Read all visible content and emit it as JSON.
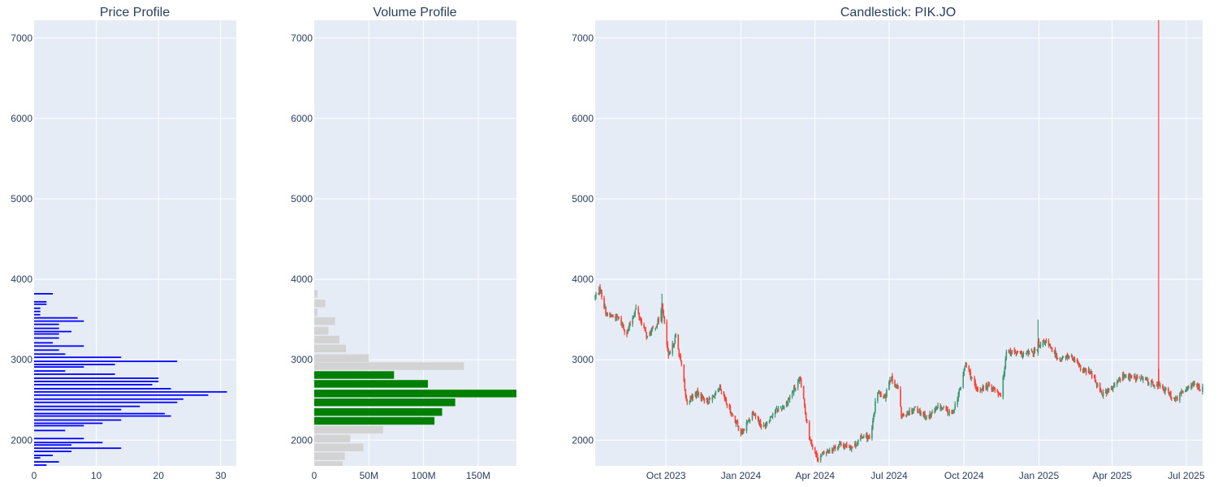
{
  "colors": {
    "plot_bg": "#E5ECF6",
    "grid": "#ffffff",
    "price_bar": "#0000ff",
    "volume_in_range": "#008000",
    "volume_out_range": "#d3d3d3",
    "candle_up": "#3d9970",
    "candle_down": "#ff4136",
    "text": "#2a3f5f"
  },
  "chart_data": [
    {
      "id": "price",
      "type": "bar",
      "orientation": "horizontal",
      "title": "Price Profile",
      "ylim": [
        1680,
        7220
      ],
      "xlim": [
        0,
        32.5
      ],
      "yticks": [
        2000,
        3000,
        4000,
        5000,
        6000,
        7000
      ],
      "xticks": [
        0,
        10,
        20,
        30
      ],
      "bar_height": 18,
      "grid": true,
      "bars": [
        {
          "y": 1690,
          "v": 2
        },
        {
          "y": 1730,
          "v": 4
        },
        {
          "y": 1780,
          "v": 1
        },
        {
          "y": 1810,
          "v": 3
        },
        {
          "y": 1860,
          "v": 6
        },
        {
          "y": 1900,
          "v": 14
        },
        {
          "y": 1940,
          "v": 6
        },
        {
          "y": 1970,
          "v": 11
        },
        {
          "y": 2020,
          "v": 8
        },
        {
          "y": 2120,
          "v": 5
        },
        {
          "y": 2180,
          "v": 8
        },
        {
          "y": 2210,
          "v": 11
        },
        {
          "y": 2250,
          "v": 14
        },
        {
          "y": 2300,
          "v": 22
        },
        {
          "y": 2330,
          "v": 21
        },
        {
          "y": 2380,
          "v": 14
        },
        {
          "y": 2420,
          "v": 17
        },
        {
          "y": 2470,
          "v": 23
        },
        {
          "y": 2510,
          "v": 24
        },
        {
          "y": 2560,
          "v": 28
        },
        {
          "y": 2600,
          "v": 31
        },
        {
          "y": 2640,
          "v": 22
        },
        {
          "y": 2690,
          "v": 19
        },
        {
          "y": 2730,
          "v": 20
        },
        {
          "y": 2770,
          "v": 20
        },
        {
          "y": 2820,
          "v": 13
        },
        {
          "y": 2860,
          "v": 5
        },
        {
          "y": 2910,
          "v": 8
        },
        {
          "y": 2940,
          "v": 13
        },
        {
          "y": 2980,
          "v": 23
        },
        {
          "y": 3030,
          "v": 14
        },
        {
          "y": 3070,
          "v": 5
        },
        {
          "y": 3120,
          "v": 4
        },
        {
          "y": 3170,
          "v": 8
        },
        {
          "y": 3210,
          "v": 3
        },
        {
          "y": 3270,
          "v": 4
        },
        {
          "y": 3320,
          "v": 4
        },
        {
          "y": 3350,
          "v": 6
        },
        {
          "y": 3390,
          "v": 4
        },
        {
          "y": 3440,
          "v": 4
        },
        {
          "y": 3480,
          "v": 8
        },
        {
          "y": 3520,
          "v": 7
        },
        {
          "y": 3560,
          "v": 1
        },
        {
          "y": 3600,
          "v": 1
        },
        {
          "y": 3640,
          "v": 1
        },
        {
          "y": 3690,
          "v": 2
        },
        {
          "y": 3720,
          "v": 2
        },
        {
          "y": 3820,
          "v": 3
        }
      ]
    },
    {
      "id": "volume",
      "type": "bar",
      "orientation": "horizontal",
      "title": "Volume Profile",
      "ylim": [
        1680,
        7220
      ],
      "xlim": [
        0,
        185000000
      ],
      "yticks": [
        2000,
        3000,
        4000,
        5000,
        6000,
        7000
      ],
      "xticks": [
        {
          "value": 0,
          "label": "0"
        },
        {
          "value": 50000000,
          "label": "50M"
        },
        {
          "value": 100000000,
          "label": "100M"
        },
        {
          "value": 150000000,
          "label": "150M"
        }
      ],
      "bar_height": 95,
      "grid": true,
      "bars": [
        {
          "y": 1690,
          "v": 26000000,
          "in_range": false
        },
        {
          "y": 1800,
          "v": 28000000,
          "in_range": false
        },
        {
          "y": 1910,
          "v": 45000000,
          "in_range": false
        },
        {
          "y": 2020,
          "v": 33000000,
          "in_range": false
        },
        {
          "y": 2130,
          "v": 63000000,
          "in_range": false
        },
        {
          "y": 2240,
          "v": 110000000,
          "in_range": true
        },
        {
          "y": 2350,
          "v": 117000000,
          "in_range": true
        },
        {
          "y": 2470,
          "v": 129000000,
          "in_range": true
        },
        {
          "y": 2580,
          "v": 185000000,
          "in_range": true
        },
        {
          "y": 2700,
          "v": 104000000,
          "in_range": true
        },
        {
          "y": 2810,
          "v": 73000000,
          "in_range": true
        },
        {
          "y": 2920,
          "v": 137000000,
          "in_range": false
        },
        {
          "y": 3020,
          "v": 50000000,
          "in_range": false
        },
        {
          "y": 3140,
          "v": 29000000,
          "in_range": false
        },
        {
          "y": 3250,
          "v": 23000000,
          "in_range": false
        },
        {
          "y": 3360,
          "v": 13000000,
          "in_range": false
        },
        {
          "y": 3480,
          "v": 19000000,
          "in_range": false
        },
        {
          "y": 3590,
          "v": 3000000,
          "in_range": false
        },
        {
          "y": 3700,
          "v": 10000000,
          "in_range": false
        },
        {
          "y": 3820,
          "v": 3000000,
          "in_range": false
        }
      ]
    },
    {
      "id": "candles",
      "type": "candlestick",
      "title": "Candlestick: PIK.JO",
      "x_range": [
        "2023-07-06",
        "2025-07-21"
      ],
      "ylim": [
        1680,
        7220
      ],
      "yticks": [
        2000,
        3000,
        4000,
        5000,
        6000,
        7000
      ],
      "xticks": [
        {
          "date": "2023-10-01",
          "label": "Oct 2023"
        },
        {
          "date": "2024-01-01",
          "label": "Jan 2024"
        },
        {
          "date": "2024-04-01",
          "label": "Apr 2024"
        },
        {
          "date": "2024-07-01",
          "label": "Jul 2024"
        },
        {
          "date": "2024-10-01",
          "label": "Oct 2024"
        },
        {
          "date": "2025-01-01",
          "label": "Jan 2025"
        },
        {
          "date": "2025-04-01",
          "label": "Apr 2025"
        },
        {
          "date": "2025-07-01",
          "label": "Jul 2025"
        }
      ],
      "close_path": [
        [
          "2023-07-06",
          3780
        ],
        [
          "2023-07-12",
          3880
        ],
        [
          "2023-07-20",
          3560
        ],
        [
          "2023-08-03",
          3520
        ],
        [
          "2023-08-14",
          3330
        ],
        [
          "2023-08-25",
          3640
        ],
        [
          "2023-09-08",
          3280
        ],
        [
          "2023-09-22",
          3480
        ],
        [
          "2023-09-26",
          3700
        ],
        [
          "2023-10-04",
          3020
        ],
        [
          "2023-10-13",
          3290
        ],
        [
          "2023-10-20",
          2920
        ],
        [
          "2023-10-26",
          2480
        ],
        [
          "2023-11-08",
          2580
        ],
        [
          "2023-11-22",
          2480
        ],
        [
          "2023-12-06",
          2630
        ],
        [
          "2023-12-15",
          2440
        ],
        [
          "2024-01-02",
          2080
        ],
        [
          "2024-01-16",
          2360
        ],
        [
          "2024-01-28",
          2150
        ],
        [
          "2024-02-10",
          2350
        ],
        [
          "2024-02-24",
          2430
        ],
        [
          "2024-03-08",
          2660
        ],
        [
          "2024-03-14",
          2740
        ],
        [
          "2024-03-25",
          2040
        ],
        [
          "2024-04-04",
          1770
        ],
        [
          "2024-04-16",
          1870
        ],
        [
          "2024-05-02",
          1940
        ],
        [
          "2024-05-18",
          1920
        ],
        [
          "2024-06-01",
          2080
        ],
        [
          "2024-06-08",
          1990
        ],
        [
          "2024-06-16",
          2610
        ],
        [
          "2024-06-25",
          2510
        ],
        [
          "2024-07-02",
          2780
        ],
        [
          "2024-07-12",
          2640
        ],
        [
          "2024-07-16",
          2300
        ],
        [
          "2024-08-02",
          2400
        ],
        [
          "2024-08-17",
          2280
        ],
        [
          "2024-09-01",
          2420
        ],
        [
          "2024-09-16",
          2320
        ],
        [
          "2024-09-26",
          2620
        ],
        [
          "2024-10-03",
          2960
        ],
        [
          "2024-10-16",
          2620
        ],
        [
          "2024-11-02",
          2680
        ],
        [
          "2024-11-16",
          2560
        ],
        [
          "2024-11-22",
          3120
        ],
        [
          "2024-12-12",
          3060
        ],
        [
          "2024-12-30",
          3110
        ],
        [
          "2025-01-08",
          3240
        ],
        [
          "2025-01-26",
          3000
        ],
        [
          "2025-02-08",
          3050
        ],
        [
          "2025-02-22",
          2880
        ],
        [
          "2025-03-06",
          2830
        ],
        [
          "2025-03-20",
          2580
        ],
        [
          "2025-04-01",
          2640
        ],
        [
          "2025-04-14",
          2800
        ],
        [
          "2025-05-08",
          2760
        ],
        [
          "2025-05-25",
          2690
        ],
        [
          "2025-06-08",
          2600
        ],
        [
          "2025-06-18",
          2500
        ],
        [
          "2025-07-06",
          2700
        ],
        [
          "2025-07-21",
          2640
        ]
      ],
      "special": [
        {
          "date": "2023-09-26",
          "o": 3480,
          "h": 3820,
          "l": 3450,
          "c": 3700
        },
        {
          "date": "2024-12-31",
          "o": 3080,
          "h": 3500,
          "l": 3050,
          "c": 3230
        },
        {
          "date": "2025-05-28",
          "o": 2890,
          "h": 7400,
          "l": 2640,
          "c": 2720
        }
      ]
    }
  ]
}
